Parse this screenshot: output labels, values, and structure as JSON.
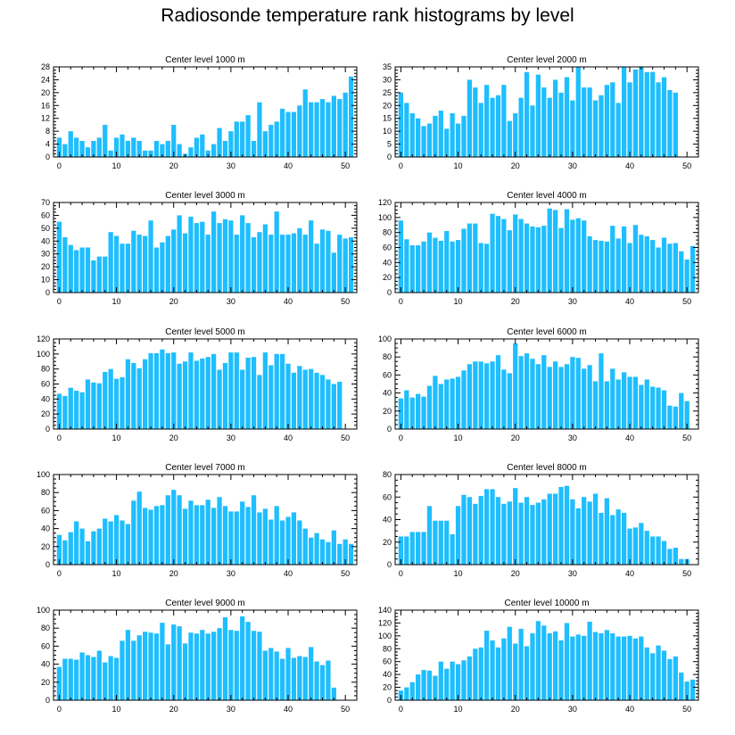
{
  "chart_data": {
    "title": "Radiosonde temperature rank histograms by level",
    "type": "bar",
    "bar_color": "#1ebeff",
    "x_ticks": [
      0,
      10,
      20,
      30,
      40,
      50
    ],
    "xlim": [
      -1,
      52
    ],
    "panels": [
      {
        "title": "Center level 1000 m",
        "ylim": [
          0,
          28
        ],
        "y_ticks": [
          0,
          4,
          8,
          12,
          16,
          20,
          24,
          28
        ],
        "values": [
          6,
          4,
          8,
          6,
          5,
          3,
          5,
          6,
          10,
          2,
          6,
          7,
          5,
          6,
          5,
          2,
          2,
          5,
          4,
          5,
          10,
          4,
          1,
          3,
          6,
          7,
          2,
          4,
          9,
          5,
          8,
          11,
          11,
          13,
          5,
          17,
          8,
          10,
          11,
          15,
          14,
          14,
          16,
          21,
          17,
          17,
          18,
          17,
          19,
          18,
          20,
          25
        ]
      },
      {
        "title": "Center level 2000 m",
        "ylim": [
          0,
          35
        ],
        "y_ticks": [
          0,
          5,
          10,
          15,
          20,
          25,
          30,
          35
        ],
        "values": [
          25,
          21,
          17,
          15,
          12,
          13,
          16,
          18,
          11,
          17,
          13,
          16,
          30,
          27,
          21,
          28,
          23,
          24,
          28,
          14,
          17,
          23,
          33,
          20,
          32,
          27,
          23,
          30,
          25,
          31,
          22,
          35,
          27,
          27,
          22,
          24,
          28,
          29,
          21,
          35,
          29,
          34,
          35,
          33,
          33,
          29,
          31,
          26,
          25
        ]
      },
      {
        "title": "Center level 3000 m",
        "ylim": [
          0,
          70
        ],
        "y_ticks": [
          0,
          10,
          20,
          30,
          40,
          50,
          60,
          70
        ],
        "values": [
          55,
          43,
          37,
          33,
          35,
          35,
          25,
          28,
          28,
          47,
          44,
          38,
          38,
          48,
          45,
          44,
          56,
          35,
          39,
          44,
          49,
          60,
          46,
          59,
          54,
          55,
          45,
          63,
          54,
          57,
          56,
          45,
          60,
          54,
          43,
          47,
          53,
          45,
          63,
          45,
          45,
          46,
          50,
          45,
          56,
          38,
          49,
          48,
          31,
          45,
          42,
          43
        ]
      },
      {
        "title": "Center level 4000 m",
        "ylim": [
          0,
          120
        ],
        "y_ticks": [
          0,
          20,
          40,
          60,
          80,
          100,
          120
        ],
        "values": [
          96,
          71,
          63,
          63,
          68,
          80,
          73,
          69,
          82,
          68,
          70,
          85,
          92,
          92,
          66,
          65,
          105,
          102,
          98,
          83,
          104,
          98,
          92,
          88,
          87,
          89,
          112,
          110,
          86,
          111,
          97,
          99,
          96,
          75,
          70,
          69,
          68,
          89,
          72,
          88,
          66,
          90,
          77,
          75,
          70,
          60,
          73,
          65,
          66,
          55,
          44,
          62
        ]
      },
      {
        "title": "Center level 5000 m",
        "ylim": [
          0,
          120
        ],
        "y_ticks": [
          0,
          20,
          40,
          60,
          80,
          100,
          120
        ],
        "values": [
          47,
          44,
          55,
          51,
          49,
          66,
          62,
          61,
          76,
          80,
          67,
          69,
          93,
          88,
          81,
          93,
          101,
          101,
          106,
          101,
          102,
          87,
          90,
          102,
          91,
          94,
          96,
          100,
          79,
          88,
          102,
          102,
          79,
          95,
          96,
          72,
          102,
          85,
          100,
          100,
          87,
          75,
          84,
          79,
          80,
          75,
          72,
          66,
          60,
          63
        ]
      },
      {
        "title": "Center level 6000 m",
        "ylim": [
          0,
          100
        ],
        "y_ticks": [
          0,
          20,
          40,
          60,
          80,
          100
        ],
        "values": [
          34,
          43,
          35,
          39,
          36,
          48,
          59,
          50,
          55,
          56,
          58,
          65,
          72,
          75,
          75,
          73,
          75,
          82,
          66,
          62,
          95,
          81,
          84,
          78,
          72,
          82,
          69,
          75,
          69,
          72,
          80,
          79,
          67,
          71,
          53,
          84,
          53,
          67,
          55,
          63,
          58,
          58,
          49,
          55,
          47,
          46,
          43,
          26,
          25,
          40,
          31
        ]
      },
      {
        "title": "Center level 7000 m",
        "ylim": [
          0,
          100
        ],
        "y_ticks": [
          0,
          20,
          40,
          60,
          80,
          100
        ],
        "values": [
          33,
          27,
          36,
          48,
          40,
          26,
          37,
          40,
          51,
          48,
          55,
          49,
          45,
          71,
          81,
          63,
          61,
          65,
          66,
          77,
          83,
          77,
          62,
          71,
          66,
          66,
          72,
          63,
          75,
          65,
          59,
          59,
          70,
          64,
          77,
          58,
          62,
          50,
          65,
          49,
          53,
          58,
          49,
          40,
          30,
          35,
          28,
          25,
          38,
          23,
          28,
          23
        ]
      },
      {
        "title": "Center level 8000 m",
        "ylim": [
          0,
          80
        ],
        "y_ticks": [
          0,
          20,
          40,
          60,
          80
        ],
        "values": [
          25,
          25,
          29,
          29,
          29,
          52,
          39,
          39,
          39,
          27,
          52,
          62,
          60,
          54,
          61,
          67,
          67,
          60,
          54,
          56,
          68,
          55,
          60,
          53,
          55,
          58,
          63,
          63,
          69,
          70,
          58,
          50,
          60,
          56,
          63,
          46,
          59,
          44,
          49,
          46,
          32,
          33,
          37,
          30,
          25,
          25,
          21,
          14,
          15,
          5,
          5
        ]
      },
      {
        "title": "Center level 9000 m",
        "ylim": [
          0,
          100
        ],
        "y_ticks": [
          0,
          20,
          40,
          60,
          80,
          100
        ],
        "values": [
          37,
          46,
          46,
          45,
          53,
          50,
          48,
          55,
          42,
          49,
          47,
          66,
          78,
          66,
          72,
          76,
          75,
          74,
          86,
          62,
          84,
          82,
          63,
          75,
          74,
          78,
          74,
          76,
          80,
          92,
          78,
          77,
          93,
          87,
          77,
          76,
          55,
          58,
          54,
          46,
          58,
          47,
          49,
          48,
          59,
          43,
          39,
          44,
          14
        ]
      },
      {
        "title": "Center level 10000 m",
        "ylim": [
          0,
          140
        ],
        "y_ticks": [
          0,
          20,
          40,
          60,
          80,
          100,
          120,
          140
        ],
        "values": [
          15,
          20,
          28,
          40,
          47,
          46,
          38,
          60,
          49,
          60,
          56,
          62,
          68,
          80,
          82,
          108,
          93,
          82,
          96,
          114,
          88,
          111,
          84,
          104,
          123,
          116,
          104,
          107,
          93,
          120,
          99,
          102,
          100,
          122,
          106,
          104,
          109,
          104,
          99,
          99,
          100,
          96,
          99,
          82,
          73,
          85,
          77,
          64,
          68,
          43,
          29,
          32
        ]
      }
    ]
  }
}
